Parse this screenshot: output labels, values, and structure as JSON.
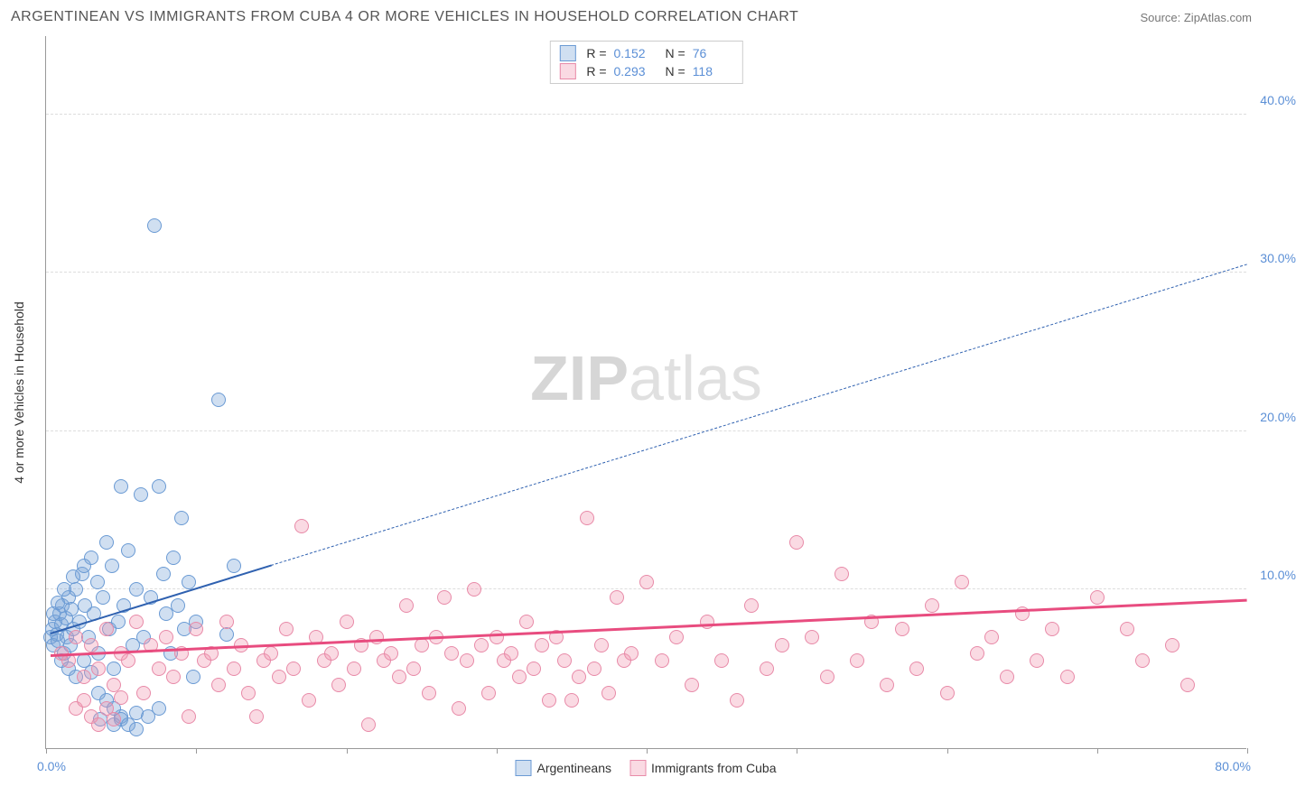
{
  "title": "ARGENTINEAN VS IMMIGRANTS FROM CUBA 4 OR MORE VEHICLES IN HOUSEHOLD CORRELATION CHART",
  "source": "Source: ZipAtlas.com",
  "watermark_bold": "ZIP",
  "watermark_rest": "atlas",
  "chart": {
    "type": "scatter",
    "y_axis_title": "4 or more Vehicles in Household",
    "xlim": [
      0,
      80
    ],
    "ylim": [
      0,
      45
    ],
    "x_left_label": "0.0%",
    "x_right_label": "80.0%",
    "x_ticks": [
      0,
      10,
      20,
      30,
      40,
      50,
      60,
      70,
      80
    ],
    "y_gridlines": [
      {
        "v": 10,
        "label": "10.0%"
      },
      {
        "v": 20,
        "label": "20.0%"
      },
      {
        "v": 30,
        "label": "30.0%"
      },
      {
        "v": 40,
        "label": "40.0%"
      }
    ],
    "background_color": "#ffffff",
    "grid_color": "#dddddd",
    "point_radius": 8,
    "series": [
      {
        "name": "Argentineans",
        "fill": "rgba(119,162,216,0.35)",
        "stroke": "#6a9ad4",
        "R_label": "R =",
        "R": "0.152",
        "N_label": "N =",
        "N": "76",
        "trend": {
          "x1": 0.3,
          "y1": 7.2,
          "x2": 15,
          "y2": 11.5,
          "x2d": 80,
          "y2d": 30.5,
          "color": "#2f61b0",
          "width": 2
        },
        "points": [
          [
            0.3,
            7.0
          ],
          [
            0.4,
            7.5
          ],
          [
            0.5,
            6.5
          ],
          [
            0.6,
            8.0
          ],
          [
            0.7,
            7.2
          ],
          [
            0.8,
            6.8
          ],
          [
            0.9,
            8.5
          ],
          [
            1.0,
            7.8
          ],
          [
            1.1,
            9.0
          ],
          [
            1.2,
            6.0
          ],
          [
            1.3,
            8.2
          ],
          [
            1.4,
            7.0
          ],
          [
            1.5,
            9.5
          ],
          [
            1.6,
            6.5
          ],
          [
            1.7,
            8.8
          ],
          [
            1.8,
            7.5
          ],
          [
            2.0,
            10.0
          ],
          [
            2.2,
            8.0
          ],
          [
            2.4,
            11.0
          ],
          [
            2.5,
            5.5
          ],
          [
            2.6,
            9.0
          ],
          [
            2.8,
            7.0
          ],
          [
            3.0,
            12.0
          ],
          [
            3.2,
            8.5
          ],
          [
            3.4,
            10.5
          ],
          [
            3.5,
            6.0
          ],
          [
            3.6,
            1.8
          ],
          [
            3.8,
            9.5
          ],
          [
            4.0,
            13.0
          ],
          [
            4.2,
            7.5
          ],
          [
            4.4,
            11.5
          ],
          [
            4.5,
            5.0
          ],
          [
            4.8,
            8.0
          ],
          [
            5.0,
            16.5
          ],
          [
            5.2,
            9.0
          ],
          [
            5.5,
            12.5
          ],
          [
            5.8,
            6.5
          ],
          [
            6.0,
            10.0
          ],
          [
            6.3,
            16.0
          ],
          [
            6.5,
            7.0
          ],
          [
            6.8,
            2.0
          ],
          [
            7.0,
            9.5
          ],
          [
            7.2,
            33.0
          ],
          [
            7.5,
            16.5
          ],
          [
            7.8,
            11.0
          ],
          [
            8.0,
            8.5
          ],
          [
            8.3,
            6.0
          ],
          [
            8.5,
            12.0
          ],
          [
            8.8,
            9.0
          ],
          [
            9.0,
            14.5
          ],
          [
            9.2,
            7.5
          ],
          [
            9.5,
            10.5
          ],
          [
            9.8,
            4.5
          ],
          [
            10.0,
            8.0
          ],
          [
            4.5,
            1.5
          ],
          [
            5.0,
            2.0
          ],
          [
            6.0,
            2.2
          ],
          [
            7.5,
            2.5
          ],
          [
            3.0,
            4.8
          ],
          [
            2.5,
            11.5
          ],
          [
            1.8,
            10.8
          ],
          [
            11.5,
            22.0
          ],
          [
            1.0,
            5.5
          ],
          [
            1.5,
            5.0
          ],
          [
            2.0,
            4.5
          ],
          [
            12.5,
            11.5
          ],
          [
            3.5,
            3.5
          ],
          [
            4.0,
            3.0
          ],
          [
            4.5,
            2.5
          ],
          [
            5.0,
            1.8
          ],
          [
            5.5,
            1.5
          ],
          [
            6.0,
            1.2
          ],
          [
            12.0,
            7.2
          ],
          [
            0.5,
            8.5
          ],
          [
            0.8,
            9.2
          ],
          [
            1.2,
            10.0
          ]
        ]
      },
      {
        "name": "Immigrants from Cuba",
        "fill": "rgba(240,150,175,0.35)",
        "stroke": "#e88aa8",
        "R_label": "R =",
        "R": "0.293",
        "N_label": "N =",
        "N": "118",
        "trend": {
          "x1": 0.3,
          "y1": 5.8,
          "x2": 80,
          "y2": 9.3,
          "color": "#e84c7f",
          "width": 2.5
        },
        "points": [
          [
            1.0,
            6.0
          ],
          [
            1.5,
            5.5
          ],
          [
            2.0,
            7.0
          ],
          [
            2.5,
            4.5
          ],
          [
            3.0,
            6.5
          ],
          [
            3.5,
            5.0
          ],
          [
            4.0,
            7.5
          ],
          [
            4.5,
            4.0
          ],
          [
            5.0,
            6.0
          ],
          [
            5.5,
            5.5
          ],
          [
            6.0,
            8.0
          ],
          [
            6.5,
            3.5
          ],
          [
            7.0,
            6.5
          ],
          [
            7.5,
            5.0
          ],
          [
            8.0,
            7.0
          ],
          [
            8.5,
            4.5
          ],
          [
            9.0,
            6.0
          ],
          [
            9.5,
            2.0
          ],
          [
            10.0,
            7.5
          ],
          [
            10.5,
            5.5
          ],
          [
            11.0,
            6.0
          ],
          [
            11.5,
            4.0
          ],
          [
            12.0,
            8.0
          ],
          [
            12.5,
            5.0
          ],
          [
            13.0,
            6.5
          ],
          [
            13.5,
            3.5
          ],
          [
            14.0,
            2.0
          ],
          [
            14.5,
            5.5
          ],
          [
            15.0,
            6.0
          ],
          [
            15.5,
            4.5
          ],
          [
            16.0,
            7.5
          ],
          [
            16.5,
            5.0
          ],
          [
            17.0,
            14.0
          ],
          [
            17.5,
            3.0
          ],
          [
            18.0,
            7.0
          ],
          [
            18.5,
            5.5
          ],
          [
            19.0,
            6.0
          ],
          [
            19.5,
            4.0
          ],
          [
            20.0,
            8.0
          ],
          [
            20.5,
            5.0
          ],
          [
            21.0,
            6.5
          ],
          [
            21.5,
            1.5
          ],
          [
            22.0,
            7.0
          ],
          [
            22.5,
            5.5
          ],
          [
            23.0,
            6.0
          ],
          [
            23.5,
            4.5
          ],
          [
            24.0,
            9.0
          ],
          [
            24.5,
            5.0
          ],
          [
            25.0,
            6.5
          ],
          [
            25.5,
            3.5
          ],
          [
            26.0,
            7.0
          ],
          [
            26.5,
            9.5
          ],
          [
            27.0,
            6.0
          ],
          [
            27.5,
            2.5
          ],
          [
            28.0,
            5.5
          ],
          [
            28.5,
            10.0
          ],
          [
            29.0,
            6.5
          ],
          [
            29.5,
            3.5
          ],
          [
            30.0,
            7.0
          ],
          [
            30.5,
            5.5
          ],
          [
            31.0,
            6.0
          ],
          [
            31.5,
            4.5
          ],
          [
            32.0,
            8.0
          ],
          [
            32.5,
            5.0
          ],
          [
            33.0,
            6.5
          ],
          [
            33.5,
            3.0
          ],
          [
            34.0,
            7.0
          ],
          [
            34.5,
            5.5
          ],
          [
            35.0,
            3.0
          ],
          [
            35.5,
            4.5
          ],
          [
            36.0,
            14.5
          ],
          [
            36.5,
            5.0
          ],
          [
            37.0,
            6.5
          ],
          [
            37.5,
            3.5
          ],
          [
            38.0,
            9.5
          ],
          [
            38.5,
            5.5
          ],
          [
            39.0,
            6.0
          ],
          [
            40.0,
            10.5
          ],
          [
            41.0,
            5.5
          ],
          [
            42.0,
            7.0
          ],
          [
            43.0,
            4.0
          ],
          [
            44.0,
            8.0
          ],
          [
            45.0,
            5.5
          ],
          [
            46.0,
            3.0
          ],
          [
            47.0,
            9.0
          ],
          [
            48.0,
            5.0
          ],
          [
            49.0,
            6.5
          ],
          [
            50.0,
            13.0
          ],
          [
            51.0,
            7.0
          ],
          [
            52.0,
            4.5
          ],
          [
            53.0,
            11.0
          ],
          [
            54.0,
            5.5
          ],
          [
            55.0,
            8.0
          ],
          [
            56.0,
            4.0
          ],
          [
            57.0,
            7.5
          ],
          [
            58.0,
            5.0
          ],
          [
            59.0,
            9.0
          ],
          [
            60.0,
            3.5
          ],
          [
            61.0,
            10.5
          ],
          [
            62.0,
            6.0
          ],
          [
            63.0,
            7.0
          ],
          [
            64.0,
            4.5
          ],
          [
            65.0,
            8.5
          ],
          [
            66.0,
            5.5
          ],
          [
            67.0,
            7.5
          ],
          [
            68.0,
            4.5
          ],
          [
            70.0,
            9.5
          ],
          [
            72.0,
            7.5
          ],
          [
            73.0,
            5.5
          ],
          [
            75.0,
            6.5
          ],
          [
            76.0,
            4.0
          ],
          [
            2.0,
            2.5
          ],
          [
            2.5,
            3.0
          ],
          [
            3.0,
            2.0
          ],
          [
            3.5,
            1.5
          ],
          [
            4.0,
            2.5
          ],
          [
            4.5,
            1.8
          ],
          [
            5.0,
            3.2
          ]
        ]
      }
    ]
  },
  "legend_bottom": [
    {
      "label": "Argentineans",
      "fill": "rgba(119,162,216,0.35)",
      "stroke": "#6a9ad4"
    },
    {
      "label": "Immigrants from Cuba",
      "fill": "rgba(240,150,175,0.35)",
      "stroke": "#e88aa8"
    }
  ]
}
